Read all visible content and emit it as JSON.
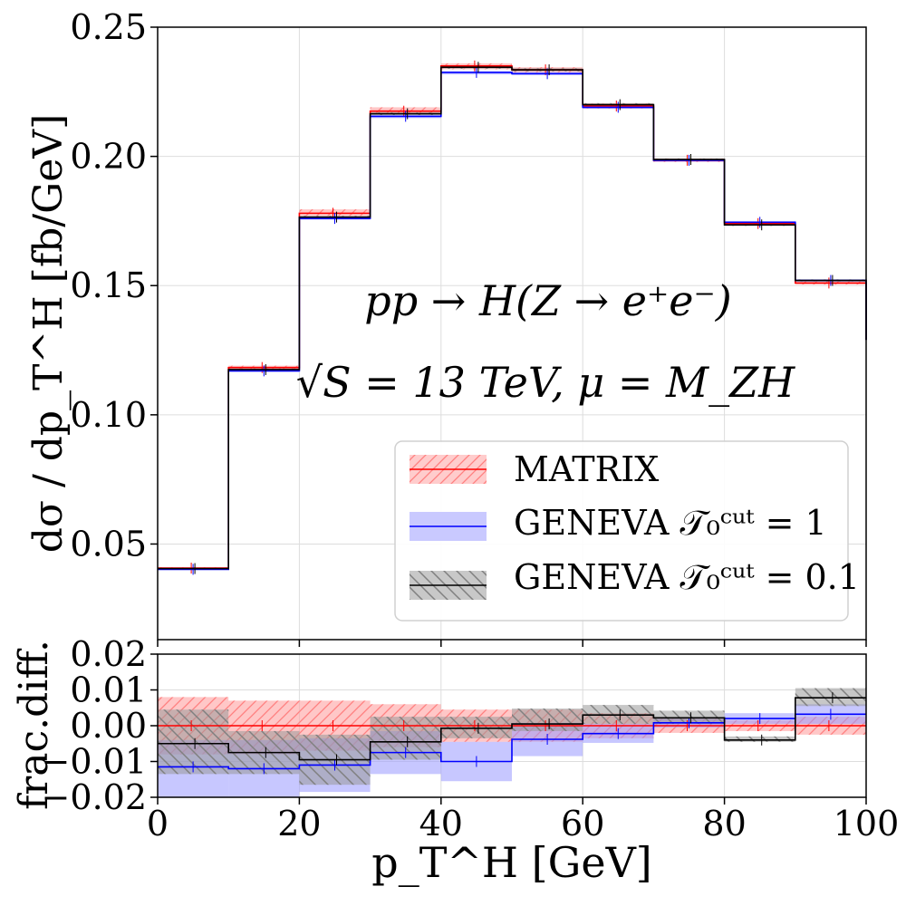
{
  "chart_data": [
    {
      "type": "step",
      "panel": "main",
      "xlabel": "p_T^H [GeV]",
      "ylabel": "dσ / dp_T^H  [fb/GeV]",
      "xlim": [
        0,
        100
      ],
      "ylim": [
        0.013,
        0.25
      ],
      "yticks": [
        "0.05",
        "0.10",
        "0.15",
        "0.20",
        "0.25"
      ],
      "ytick_values": [
        0.05,
        0.1,
        0.15,
        0.2,
        0.25
      ],
      "grid": true,
      "bin_edges": [
        0,
        10,
        20,
        30,
        40,
        50,
        60,
        70,
        80,
        90,
        100
      ],
      "series": [
        {
          "name": "MATRIX",
          "color": "#ff0000",
          "hatch": "//",
          "values": [
            0.0407,
            0.1183,
            0.178,
            0.2175,
            0.235,
            0.2335,
            0.2195,
            0.1985,
            0.174,
            0.151
          ],
          "band_lo": [
            0.0404,
            0.1175,
            0.177,
            0.2162,
            0.2337,
            0.2325,
            0.2185,
            0.1978,
            0.1734,
            0.1504
          ],
          "band_hi": [
            0.041,
            0.119,
            0.1795,
            0.219,
            0.236,
            0.2345,
            0.2205,
            0.1992,
            0.1746,
            0.1516
          ]
        },
        {
          "name": "GENEVA T0cut = 1",
          "color": "#0000ff",
          "hatch": "",
          "values": [
            0.0402,
            0.117,
            0.176,
            0.2155,
            0.2325,
            0.232,
            0.219,
            0.1985,
            0.1745,
            0.152
          ],
          "band_lo": [
            0.04,
            0.1165,
            0.1755,
            0.2148,
            0.2317,
            0.2314,
            0.2184,
            0.198,
            0.1741,
            0.1516
          ],
          "band_hi": [
            0.0405,
            0.1175,
            0.1765,
            0.216,
            0.233,
            0.2326,
            0.2196,
            0.199,
            0.1749,
            0.1524
          ]
        },
        {
          "name": "GENEVA T0cut = 0.1",
          "color": "#000000",
          "hatch": "\\\\",
          "values": [
            0.0405,
            0.1175,
            0.1765,
            0.2165,
            0.2345,
            0.2335,
            0.22,
            0.1988,
            0.1735,
            0.152
          ],
          "band_lo": [
            0.0403,
            0.1171,
            0.176,
            0.216,
            0.2339,
            0.2329,
            0.2194,
            0.1984,
            0.1731,
            0.1516
          ],
          "band_hi": [
            0.0407,
            0.1179,
            0.177,
            0.217,
            0.2351,
            0.2341,
            0.2206,
            0.1992,
            0.1739,
            0.1524
          ]
        }
      ],
      "annotations": [
        "pp → H(Z → e⁺e⁻)",
        "√S = 13 TeV,  μ = M_ZH"
      ],
      "legend": {
        "placement": "lower-right",
        "entries": [
          "MATRIX",
          "GENEVA 𝒯₀ᶜᵘᵗ = 1",
          "GENEVA 𝒯₀ᶜᵘᵗ = 0.1"
        ]
      }
    },
    {
      "type": "step",
      "panel": "ratio",
      "ylabel": "frac.diff.",
      "xlabel": "p_T^H [GeV]",
      "xlim": [
        0,
        100
      ],
      "ylim": [
        -0.02,
        0.02
      ],
      "yticks": [
        "0.02",
        "0.01",
        "0.00",
        "−0.01",
        "−0.02"
      ],
      "ytick_values": [
        0.02,
        0.01,
        0.0,
        -0.01,
        -0.02
      ],
      "xticks": [
        "0",
        "20",
        "40",
        "60",
        "80",
        "100"
      ],
      "xtick_values": [
        0,
        20,
        40,
        60,
        80,
        100
      ],
      "grid": true,
      "bin_edges": [
        0,
        10,
        20,
        30,
        40,
        50,
        60,
        70,
        80,
        90,
        100
      ],
      "series": [
        {
          "name": "MATRIX",
          "color": "#ff0000",
          "hatch": "//",
          "values": [
            0.0,
            0.0,
            0.0,
            0.0,
            0.0,
            0.0,
            0.0,
            0.0,
            0.0,
            0.0
          ],
          "band_lo": [
            -0.008,
            -0.008,
            -0.007,
            -0.006,
            -0.0045,
            -0.0045,
            -0.0035,
            -0.002,
            -0.0015,
            -0.0025
          ],
          "band_hi": [
            0.008,
            0.007,
            0.007,
            0.006,
            0.0045,
            0.0045,
            0.0035,
            0.002,
            0.0015,
            0.0025
          ]
        },
        {
          "name": "GENEVA T0cut = 1",
          "color": "#0000ff",
          "hatch": "",
          "values": [
            -0.0115,
            -0.012,
            -0.011,
            -0.0075,
            -0.01,
            -0.0038,
            -0.0022,
            0.0008,
            0.002,
            0.0032
          ],
          "band_lo": [
            -0.02,
            -0.02,
            -0.0185,
            -0.0135,
            -0.0155,
            -0.0085,
            -0.0048,
            -0.0005,
            0.0005,
            0.0005
          ],
          "band_hi": [
            -0.004,
            -0.004,
            -0.0035,
            -0.0015,
            -0.0045,
            0.0008,
            0.0005,
            0.002,
            0.0035,
            0.006
          ]
        },
        {
          "name": "GENEVA T0cut = 0.1",
          "color": "#000000",
          "hatch": "\\\\",
          "values": [
            -0.005,
            -0.0075,
            -0.0095,
            -0.0045,
            -0.0007,
            0.0005,
            0.003,
            0.0022,
            -0.004,
            0.0078
          ],
          "band_lo": [
            -0.0135,
            -0.0135,
            -0.0165,
            -0.0095,
            -0.0035,
            -0.0015,
            0.0005,
            0.0005,
            -0.0045,
            0.0055
          ],
          "band_hi": [
            0.0045,
            -0.0015,
            -0.0025,
            0.0025,
            0.0025,
            0.0048,
            0.0058,
            0.0042,
            -0.003,
            0.0105
          ]
        }
      ]
    }
  ]
}
